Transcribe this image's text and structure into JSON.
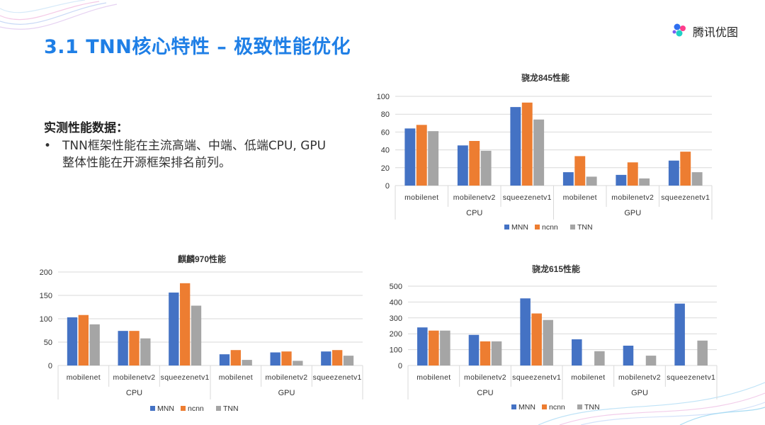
{
  "slide": {
    "title": "3.1 TNN核心特性 – 极致性能优化",
    "logo_text": "腾讯优图",
    "section_heading": "实测性能数据：",
    "bullet_marker": "•",
    "bullet_text": "TNN框架性能在主流高端、中端、低端CPU, GPU整体性能在开源框架排名前列。"
  },
  "colors": {
    "MNN": "#4472c4",
    "ncnn": "#ed7d31",
    "TNN": "#a5a5a5",
    "title": "#1f7fe6"
  },
  "chart_data": [
    {
      "type": "bar",
      "title": "骁龙845性能",
      "groups": [
        "CPU",
        "GPU"
      ],
      "categories": [
        "mobilenet",
        "mobilenetv2",
        "squeezenetv1",
        "mobilenet",
        "mobilenetv2",
        "squeezenetv1"
      ],
      "series": [
        {
          "name": "MNN",
          "values": [
            64,
            45,
            88,
            15,
            12,
            28
          ]
        },
        {
          "name": "ncnn",
          "values": [
            68,
            50,
            93,
            33,
            26,
            38
          ]
        },
        {
          "name": "TNN",
          "values": [
            61,
            39,
            74,
            10,
            8,
            15
          ]
        }
      ],
      "yticks": [
        0,
        20,
        40,
        60,
        80,
        100
      ],
      "ylim": [
        0,
        100
      ],
      "legend": "bottom"
    },
    {
      "type": "bar",
      "title": "麒麟970性能",
      "groups": [
        "CPU",
        "GPU"
      ],
      "categories": [
        "mobilenet",
        "mobilenetv2",
        "squeezenetv1",
        "mobilenet",
        "mobilenetv2",
        "squeezenetv1"
      ],
      "series": [
        {
          "name": "MNN",
          "values": [
            103,
            74,
            156,
            24,
            28,
            30
          ]
        },
        {
          "name": "ncnn",
          "values": [
            108,
            74,
            176,
            33,
            30,
            33
          ]
        },
        {
          "name": "TNN",
          "values": [
            88,
            58,
            128,
            12,
            10,
            21
          ]
        }
      ],
      "yticks": [
        0,
        50,
        100,
        150,
        200
      ],
      "ylim": [
        0,
        200
      ],
      "legend": "bottom"
    },
    {
      "type": "bar",
      "title": "骁龙615性能",
      "groups": [
        "CPU",
        "GPU"
      ],
      "categories": [
        "mobilenet",
        "mobilenetv2",
        "squeezenetv1",
        "mobilenet",
        "mobilenetv2",
        "squeezenetv1"
      ],
      "series": [
        {
          "name": "MNN",
          "values": [
            240,
            193,
            423,
            165,
            125,
            390
          ]
        },
        {
          "name": "ncnn",
          "values": [
            220,
            152,
            328,
            0,
            0,
            0
          ]
        },
        {
          "name": "TNN",
          "values": [
            220,
            152,
            287,
            90,
            62,
            157
          ]
        }
      ],
      "yticks": [
        0,
        100,
        200,
        300,
        400,
        500
      ],
      "ylim": [
        0,
        500
      ],
      "legend": "bottom"
    }
  ]
}
